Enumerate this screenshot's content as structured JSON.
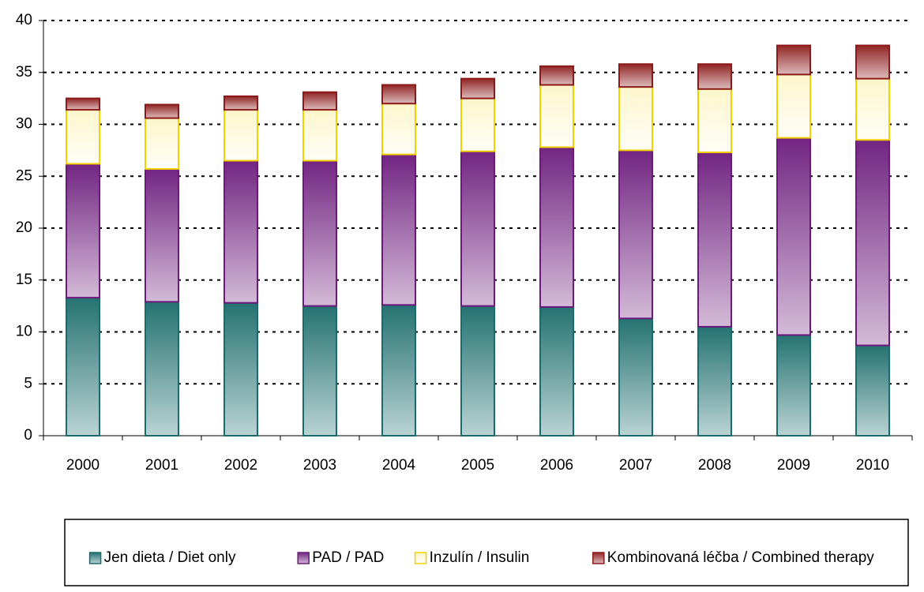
{
  "chart_data": {
    "type": "stacked_bar",
    "categories": [
      "2000",
      "2001",
      "2002",
      "2003",
      "2004",
      "2005",
      "2006",
      "2007",
      "2008",
      "2009",
      "2010"
    ],
    "series": [
      {
        "name": "Jen dieta / Diet only",
        "color": "#1a6b6b",
        "values": [
          13.3,
          12.9,
          12.8,
          12.5,
          12.6,
          12.5,
          12.4,
          11.3,
          10.5,
          9.7,
          8.7
        ]
      },
      {
        "name": "PAD / PAD",
        "color": "#6b1a7b",
        "values": [
          12.9,
          12.8,
          13.7,
          14.0,
          14.5,
          14.9,
          15.4,
          16.2,
          16.8,
          19.0,
          19.8
        ]
      },
      {
        "name": "Inzulín / Insulin",
        "color": "#f5d000",
        "values": [
          5.2,
          4.9,
          4.9,
          4.9,
          4.9,
          5.1,
          6.0,
          6.1,
          6.1,
          6.1,
          5.9
        ]
      },
      {
        "name": "Kombinovaná léčba / Combined therapy",
        "color": "#8b1a1a",
        "values": [
          1.1,
          1.3,
          1.3,
          1.7,
          1.8,
          1.9,
          1.8,
          2.2,
          2.4,
          2.8,
          3.2
        ]
      }
    ],
    "ylim": [
      0,
      40
    ],
    "yticks": [
      0,
      5,
      10,
      15,
      20,
      25,
      30,
      35,
      40
    ],
    "grid": true,
    "legend": "bottom"
  }
}
